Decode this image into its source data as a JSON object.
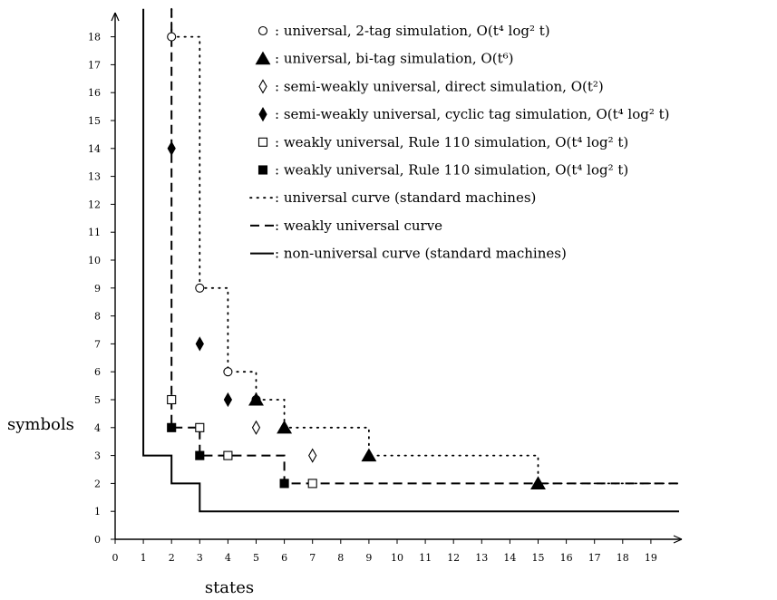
{
  "chart_data": {
    "type": "scatter",
    "xlabel": "states",
    "ylabel": "symbols",
    "xlim": [
      0,
      20
    ],
    "ylim": [
      0,
      19
    ],
    "x_ticks": [
      0,
      1,
      2,
      3,
      4,
      5,
      6,
      7,
      8,
      9,
      10,
      11,
      12,
      13,
      14,
      15,
      16,
      17,
      18,
      19
    ],
    "y_ticks": [
      0,
      1,
      2,
      3,
      4,
      5,
      6,
      7,
      8,
      9,
      10,
      11,
      12,
      13,
      14,
      15,
      16,
      17,
      18
    ],
    "grid": false,
    "legend_position": "top-right",
    "series": [
      {
        "marker": "circle-open",
        "label": ": universal, 2-tag simulation, O(t⁴ log² t)",
        "points": [
          [
            2,
            18
          ],
          [
            3,
            9
          ],
          [
            4,
            6
          ],
          [
            5,
            5
          ]
        ]
      },
      {
        "marker": "triangle-filled",
        "label": ": universal, bi-tag simulation, O(t⁶)",
        "points": [
          [
            5,
            5
          ],
          [
            6,
            4
          ],
          [
            9,
            3
          ],
          [
            15,
            2
          ]
        ]
      },
      {
        "marker": "diamond-open",
        "label": ": semi-weakly universal, direct simulation, O(t²)",
        "points": [
          [
            5,
            4
          ],
          [
            7,
            3
          ]
        ]
      },
      {
        "marker": "diamond-filled",
        "label": ": semi-weakly universal, cyclic tag simulation, O(t⁴ log² t)",
        "points": [
          [
            2,
            14
          ],
          [
            3,
            7
          ],
          [
            4,
            5
          ]
        ]
      },
      {
        "marker": "square-open",
        "label": ": weakly universal, Rule 110 simulation, O(t⁴ log² t)",
        "points": [
          [
            2,
            5
          ],
          [
            3,
            4
          ],
          [
            4,
            3
          ],
          [
            7,
            2
          ]
        ]
      },
      {
        "marker": "square-filled",
        "label": ": weakly universal, Rule 110 simulation, O(t⁴ log² t)",
        "points": [
          [
            2,
            4
          ],
          [
            3,
            3
          ],
          [
            6,
            2
          ]
        ]
      }
    ],
    "curves": [
      {
        "style": "dotted",
        "label": ": universal curve (standard machines)",
        "points": [
          [
            2,
            19
          ],
          [
            2,
            18
          ],
          [
            3,
            18
          ],
          [
            3,
            9
          ],
          [
            4,
            9
          ],
          [
            4,
            6
          ],
          [
            5,
            6
          ],
          [
            5,
            5
          ],
          [
            6,
            5
          ],
          [
            6,
            4
          ],
          [
            9,
            4
          ],
          [
            9,
            3
          ],
          [
            15,
            3
          ],
          [
            15,
            2
          ],
          [
            20,
            2
          ]
        ]
      },
      {
        "style": "dashed",
        "label": ": weakly universal curve",
        "points": [
          [
            2,
            19
          ],
          [
            2,
            4
          ],
          [
            3,
            4
          ],
          [
            3,
            3
          ],
          [
            6,
            3
          ],
          [
            6,
            2
          ],
          [
            20,
            2
          ]
        ]
      },
      {
        "style": "solid",
        "label": ": non-universal curve (standard machines)",
        "points": [
          [
            1,
            19
          ],
          [
            1,
            3
          ],
          [
            2,
            3
          ],
          [
            2,
            2
          ],
          [
            3,
            2
          ],
          [
            3,
            1
          ],
          [
            20,
            1
          ]
        ]
      }
    ]
  }
}
